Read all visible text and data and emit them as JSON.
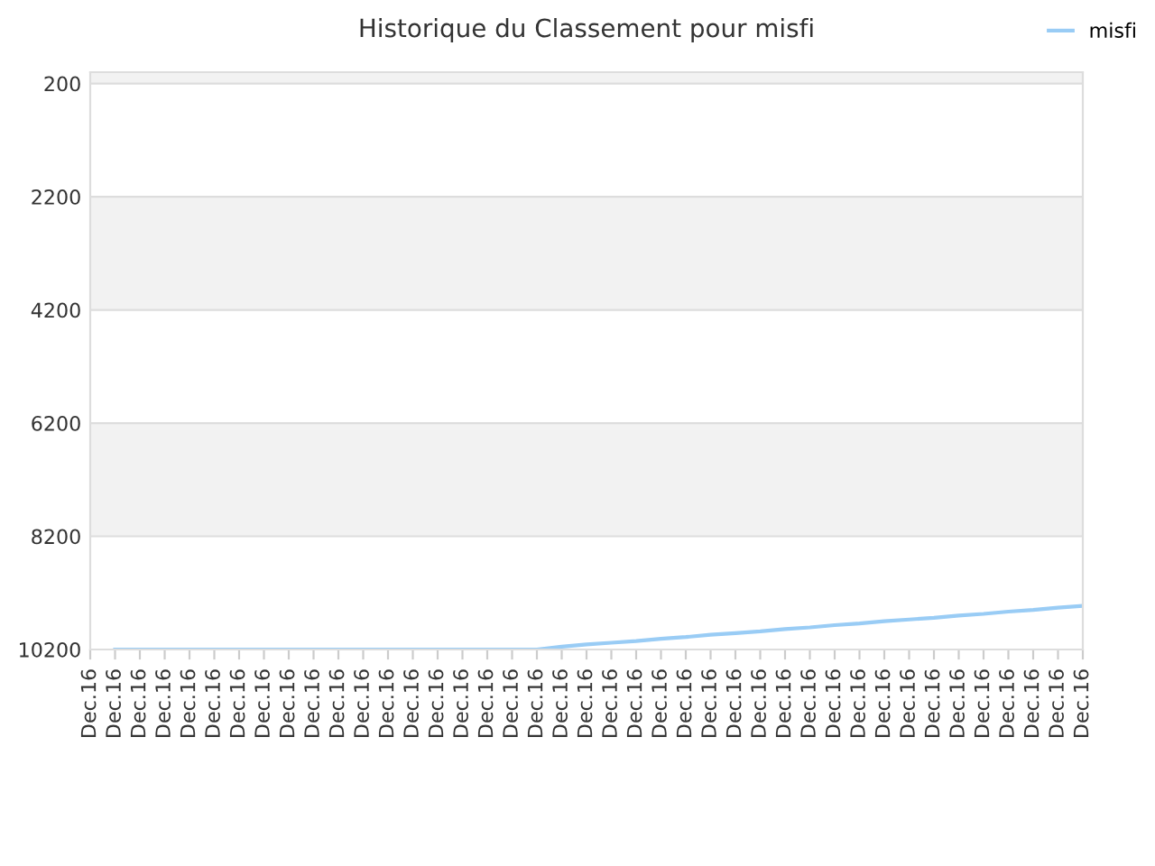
{
  "chart_data": {
    "type": "line",
    "title": "Historique du Classement pour misfi",
    "categories": [
      "Dec.16",
      "Dec.16",
      "Dec.16",
      "Dec.16",
      "Dec.16",
      "Dec.16",
      "Dec.16",
      "Dec.16",
      "Dec.16",
      "Dec.16",
      "Dec.16",
      "Dec.16",
      "Dec.16",
      "Dec.16",
      "Dec.16",
      "Dec.16",
      "Dec.16",
      "Dec.16",
      "Dec.16",
      "Dec.16",
      "Dec.16",
      "Dec.16",
      "Dec.16",
      "Dec.16",
      "Dec.16",
      "Dec.16",
      "Dec.16",
      "Dec.16",
      "Dec.16",
      "Dec.16",
      "Dec.16",
      "Dec.16",
      "Dec.16",
      "Dec.16",
      "Dec.16",
      "Dec.16",
      "Dec.16",
      "Dec.16",
      "Dec.16",
      "Dec.16",
      "Dec.16"
    ],
    "series": [
      {
        "name": "misfi",
        "color": "#99ccf5",
        "values": [
          null,
          10200,
          10200,
          10200,
          10200,
          10200,
          10200,
          10200,
          10200,
          10200,
          10200,
          10200,
          10200,
          10200,
          10200,
          10200,
          10200,
          10200,
          10200,
          10150,
          10110,
          10080,
          10050,
          10010,
          9980,
          9940,
          9910,
          9880,
          9840,
          9810,
          9770,
          9740,
          9700,
          9670,
          9640,
          9600,
          9570,
          9530,
          9500,
          9460,
          9430
        ]
      }
    ],
    "ylim": [
      10200,
      0
    ],
    "yticks": [
      200,
      2200,
      4200,
      6200,
      8200,
      10200
    ],
    "bands": [
      {
        "axis": "y",
        "from": 0,
        "to": 200,
        "color": "#f2f2f2"
      },
      {
        "axis": "y",
        "from": 2200,
        "to": 4200,
        "color": "#f2f2f2"
      },
      {
        "axis": "y",
        "from": 6200,
        "to": 8200,
        "color": "#f2f2f2"
      }
    ],
    "grid": "y",
    "legend": "top right",
    "marker": "none",
    "line_style": "solid"
  }
}
